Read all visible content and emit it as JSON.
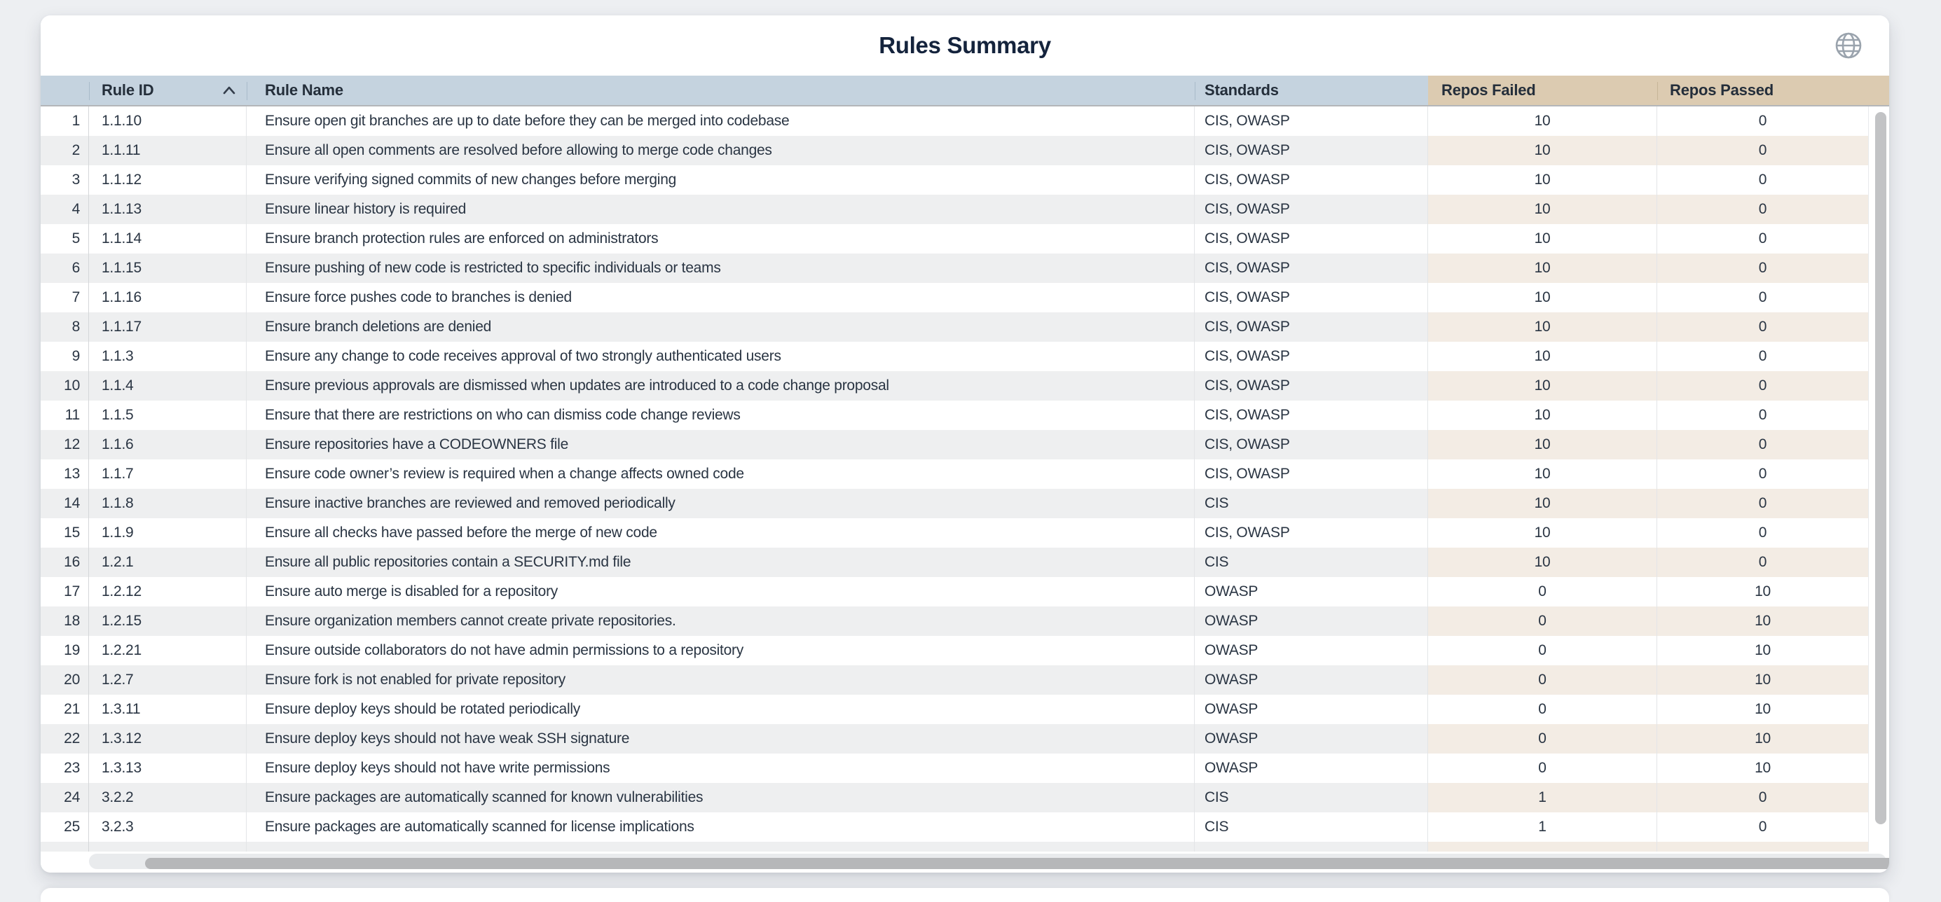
{
  "header": {
    "title": "Rules Summary",
    "globe_icon": "globe-icon"
  },
  "colors": {
    "header_blue": "#c5d3df",
    "header_tan": "#dccbb1",
    "row_alt_gray": "#eeeff0",
    "row_alt_tan": "#f3ece4",
    "title_text": "#14233c",
    "body_text": "#2a3543"
  },
  "table": {
    "columns": [
      {
        "id": "row_number",
        "label": ""
      },
      {
        "id": "rule_id",
        "label": "Rule ID",
        "sort": "ascending"
      },
      {
        "id": "rule_name",
        "label": "Rule Name"
      },
      {
        "id": "standards",
        "label": "Standards"
      },
      {
        "id": "repos_failed",
        "label": "Repos Failed"
      },
      {
        "id": "repos_passed",
        "label": "Repos Passed"
      }
    ],
    "partial_row_visible": true,
    "rows": [
      {
        "n": 1,
        "rule_id": "1.1.10",
        "rule_name": "Ensure open git branches are up to date before they can be merged into codebase",
        "standards": "CIS, OWASP",
        "repos_failed": 10,
        "repos_passed": 0
      },
      {
        "n": 2,
        "rule_id": "1.1.11",
        "rule_name": "Ensure all open comments are resolved before allowing to merge code changes",
        "standards": "CIS, OWASP",
        "repos_failed": 10,
        "repos_passed": 0
      },
      {
        "n": 3,
        "rule_id": "1.1.12",
        "rule_name": "Ensure verifying signed commits of new changes before merging",
        "standards": "CIS, OWASP",
        "repos_failed": 10,
        "repos_passed": 0
      },
      {
        "n": 4,
        "rule_id": "1.1.13",
        "rule_name": "Ensure linear history is required",
        "standards": "CIS, OWASP",
        "repos_failed": 10,
        "repos_passed": 0
      },
      {
        "n": 5,
        "rule_id": "1.1.14",
        "rule_name": "Ensure branch protection rules are enforced on administrators",
        "standards": "CIS, OWASP",
        "repos_failed": 10,
        "repos_passed": 0
      },
      {
        "n": 6,
        "rule_id": "1.1.15",
        "rule_name": "Ensure pushing of new code is restricted to specific individuals or teams",
        "standards": "CIS, OWASP",
        "repos_failed": 10,
        "repos_passed": 0
      },
      {
        "n": 7,
        "rule_id": "1.1.16",
        "rule_name": "Ensure force pushes code to branches is denied",
        "standards": "CIS, OWASP",
        "repos_failed": 10,
        "repos_passed": 0
      },
      {
        "n": 8,
        "rule_id": "1.1.17",
        "rule_name": "Ensure branch deletions are denied",
        "standards": "CIS, OWASP",
        "repos_failed": 10,
        "repos_passed": 0
      },
      {
        "n": 9,
        "rule_id": "1.1.3",
        "rule_name": "Ensure any change to code receives approval of two strongly authenticated users",
        "standards": "CIS, OWASP",
        "repos_failed": 10,
        "repos_passed": 0
      },
      {
        "n": 10,
        "rule_id": "1.1.4",
        "rule_name": "Ensure previous approvals are dismissed when updates are introduced to a code change proposal",
        "standards": "CIS, OWASP",
        "repos_failed": 10,
        "repos_passed": 0
      },
      {
        "n": 11,
        "rule_id": "1.1.5",
        "rule_name": "Ensure that there are restrictions on who can dismiss code change reviews",
        "standards": "CIS, OWASP",
        "repos_failed": 10,
        "repos_passed": 0
      },
      {
        "n": 12,
        "rule_id": "1.1.6",
        "rule_name": "Ensure repositories have a CODEOWNERS file",
        "standards": "CIS, OWASP",
        "repos_failed": 10,
        "repos_passed": 0
      },
      {
        "n": 13,
        "rule_id": "1.1.7",
        "rule_name": "Ensure code owner’s review is required when a change affects owned code",
        "standards": "CIS, OWASP",
        "repos_failed": 10,
        "repos_passed": 0
      },
      {
        "n": 14,
        "rule_id": "1.1.8",
        "rule_name": "Ensure inactive branches are reviewed and removed periodically",
        "standards": "CIS",
        "repos_failed": 10,
        "repos_passed": 0
      },
      {
        "n": 15,
        "rule_id": "1.1.9",
        "rule_name": "Ensure all checks have passed before the merge of new code",
        "standards": "CIS, OWASP",
        "repos_failed": 10,
        "repos_passed": 0
      },
      {
        "n": 16,
        "rule_id": "1.2.1",
        "rule_name": "Ensure all public repositories contain a SECURITY.md file",
        "standards": "CIS",
        "repos_failed": 10,
        "repos_passed": 0
      },
      {
        "n": 17,
        "rule_id": "1.2.12",
        "rule_name": "Ensure auto merge is disabled for a repository",
        "standards": "OWASP",
        "repos_failed": 0,
        "repos_passed": 10
      },
      {
        "n": 18,
        "rule_id": "1.2.15",
        "rule_name": "Ensure organization members cannot create private repositories.",
        "standards": "OWASP",
        "repos_failed": 0,
        "repos_passed": 10
      },
      {
        "n": 19,
        "rule_id": "1.2.21",
        "rule_name": "Ensure outside collaborators do not have admin permissions to a repository",
        "standards": "OWASP",
        "repos_failed": 0,
        "repos_passed": 10
      },
      {
        "n": 20,
        "rule_id": "1.2.7",
        "rule_name": "Ensure fork is not enabled for private repository",
        "standards": "OWASP",
        "repos_failed": 0,
        "repos_passed": 10
      },
      {
        "n": 21,
        "rule_id": "1.3.11",
        "rule_name": "Ensure deploy keys should be rotated periodically",
        "standards": "OWASP",
        "repos_failed": 0,
        "repos_passed": 10
      },
      {
        "n": 22,
        "rule_id": "1.3.12",
        "rule_name": "Ensure deploy keys should not have weak SSH signature",
        "standards": "OWASP",
        "repos_failed": 0,
        "repos_passed": 10
      },
      {
        "n": 23,
        "rule_id": "1.3.13",
        "rule_name": "Ensure deploy keys should not have write permissions",
        "standards": "OWASP",
        "repos_failed": 0,
        "repos_passed": 10
      },
      {
        "n": 24,
        "rule_id": "3.2.2",
        "rule_name": "Ensure packages are automatically scanned for known vulnerabilities",
        "standards": "CIS",
        "repos_failed": 1,
        "repos_passed": 0
      },
      {
        "n": 25,
        "rule_id": "3.2.3",
        "rule_name": "Ensure packages are automatically scanned for license implications",
        "standards": "CIS",
        "repos_failed": 1,
        "repos_passed": 0
      }
    ]
  }
}
